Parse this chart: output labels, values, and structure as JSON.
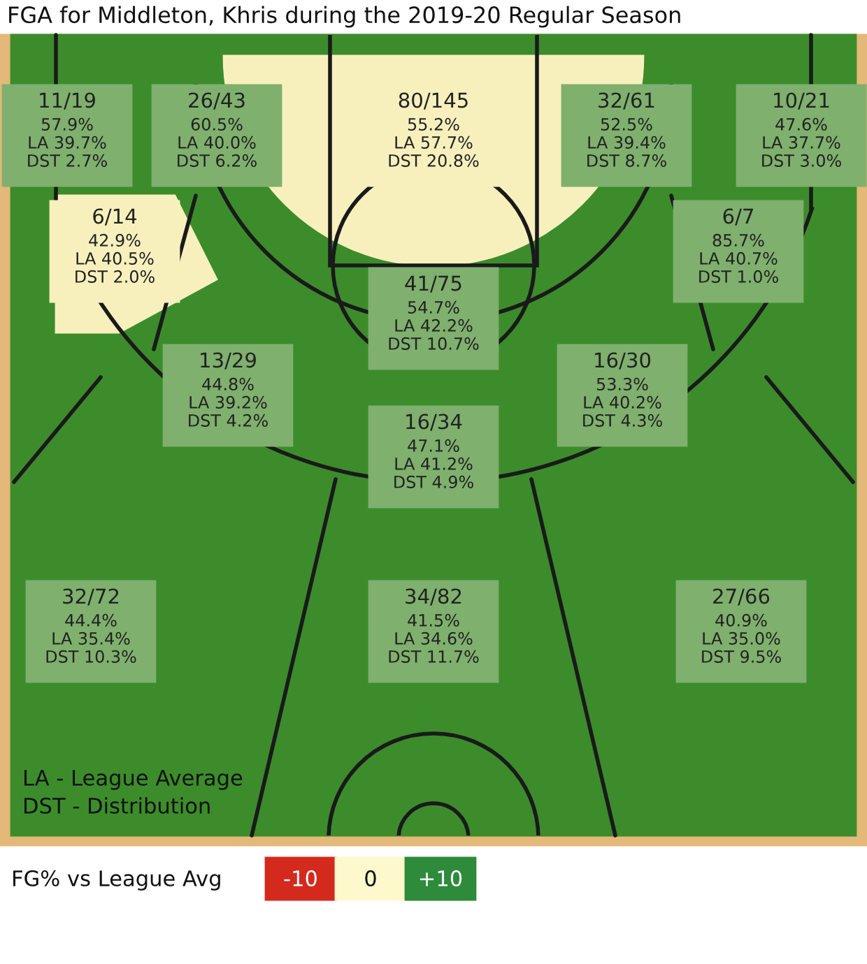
{
  "chart_data": [
    {
      "type": "other",
      "title": "FGA for Middleton, Khris during the 2019-20 Regular Season",
      "categories": [
        "11/19",
        "26/43",
        "80/145",
        "32/61",
        "10/21",
        "6/14",
        "6/7",
        "41/75",
        "13/29",
        "16/30",
        "16/34",
        "32/72",
        "34/82",
        "27/66"
      ],
      "values": [
        57.9,
        60.5,
        55.2,
        52.5,
        47.6,
        42.9,
        85.7,
        54.7,
        44.8,
        53.3,
        47.1,
        44.4,
        41.5,
        40.9
      ],
      "value_labels": [
        "57.9%",
        "60.5%",
        "55.2%",
        "52.5%",
        "47.6%",
        "42.9%",
        "85.7%",
        "54.7%",
        "44.8%",
        "53.3%",
        "47.1%",
        "44.4%",
        "41.5%",
        "40.9%"
      ],
      "colors": [
        "#7fb06e",
        "#7fb06e",
        "#f7f0bd",
        "#7fb06e",
        "#7fb06e",
        "#f7f0bd",
        "#7fb06e",
        "#7fb06e",
        "#7fb06e",
        "#7fb06e",
        "#7fb06e",
        "#7fb06e",
        "#7fb06e",
        "#7fb06e"
      ],
      "annotations": [
        "LA - League Average",
        "DST - Distribution",
        "LA 39.7%",
        "DST 2.7%",
        "LA 40.0%",
        "DST 6.2%",
        "LA 57.7%",
        "DST 20.8%",
        "LA 39.4%",
        "DST 8.7%",
        "LA 37.7%",
        "DST 3.0%",
        "LA 40.5%",
        "DST 2.0%",
        "LA 40.7%",
        "DST 1.0%",
        "LA 42.2%",
        "DST 10.7%",
        "LA 39.2%",
        "DST 4.2%",
        "LA 40.2%",
        "DST 4.3%",
        "LA 41.2%",
        "DST 4.9%",
        "LA 35.4%",
        "DST 10.3%",
        "LA 34.6%",
        "DST 11.7%",
        "LA 35.0%",
        "DST 9.5%"
      ]
    },
    {
      "type": "other",
      "title": "FG% vs League Avg",
      "categories": [
        "-10",
        "0",
        "+10"
      ],
      "colors": [
        "#d42a1e",
        "#fdf9cc",
        "#2e8b3c"
      ]
    }
  ]
}
